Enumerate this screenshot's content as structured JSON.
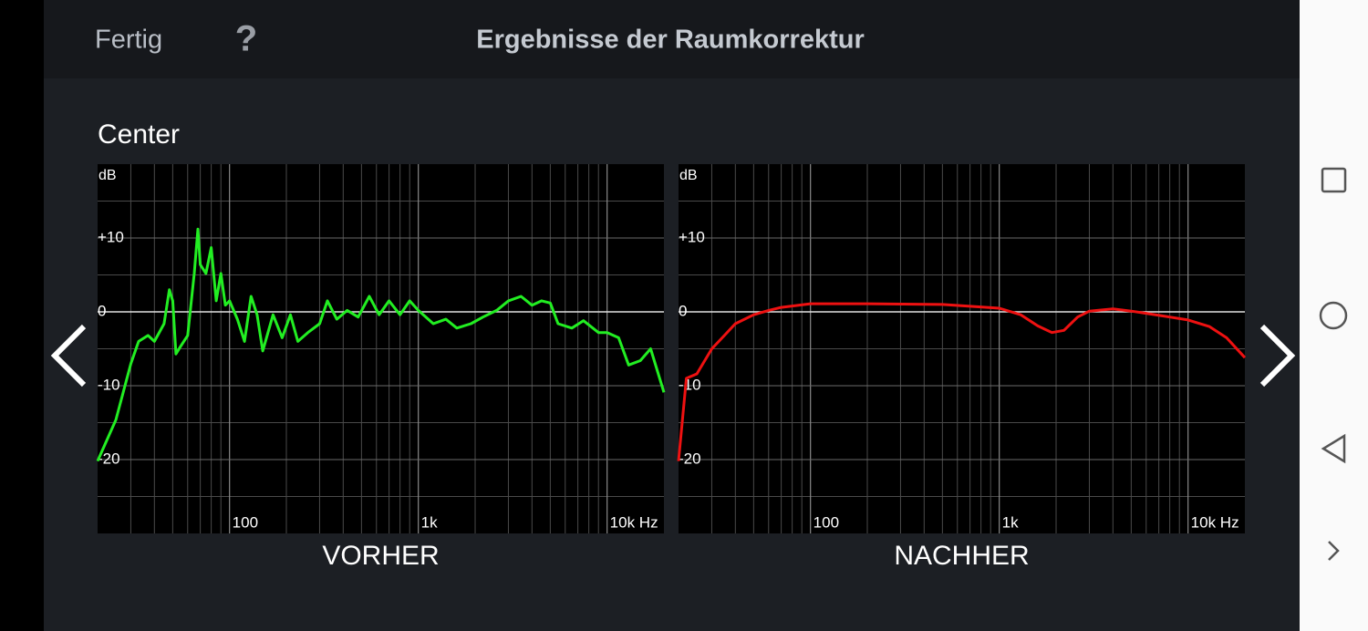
{
  "header": {
    "done_button": "Fertig",
    "help_button": "?",
    "title": "Ergebnisse der Raumkorrektur"
  },
  "channel": "Center",
  "chart_data": [
    {
      "type": "line",
      "xlabel": "VORHER",
      "ylabel": "dB",
      "x_scale": "log",
      "grid": true,
      "xlim": [
        20,
        20000
      ],
      "ylim": [
        -30,
        20
      ],
      "xticks": [
        100,
        {
          "value": 1000,
          "label": "1k"
        },
        {
          "value": 10000,
          "label": "10k Hz"
        }
      ],
      "x_minor_ticks": [
        30,
        40,
        50,
        60,
        70,
        80,
        90,
        200,
        300,
        400,
        500,
        600,
        700,
        800,
        900,
        2000,
        3000,
        4000,
        5000,
        6000,
        7000,
        8000,
        9000
      ],
      "yticks": [
        {
          "value": 10,
          "label": "+10"
        },
        0,
        -10,
        -20
      ],
      "y_minor_ticks": [
        15,
        5,
        -5,
        -15,
        -25
      ],
      "x": [
        20,
        25,
        30,
        33,
        37,
        40,
        45,
        48,
        50,
        52,
        55,
        60,
        65,
        68,
        70,
        75,
        80,
        85,
        90,
        95,
        100,
        110,
        120,
        130,
        140,
        150,
        170,
        190,
        210,
        230,
        260,
        300,
        330,
        370,
        420,
        480,
        550,
        620,
        700,
        800,
        900,
        1000,
        1200,
        1400,
        1600,
        1900,
        2200,
        2600,
        3000,
        3500,
        4000,
        4500,
        5000,
        5500,
        6500,
        7500,
        9000,
        10000,
        11500,
        13000,
        15000,
        17000,
        20000
      ],
      "series": [
        {
          "color": "#22ee22",
          "values": [
            -20.2,
            -14.6,
            -7,
            -4,
            -3.2,
            -4,
            -1.6,
            3,
            1.5,
            -5.7,
            -4.7,
            -3.2,
            5.2,
            11.2,
            6.4,
            5.2,
            8.7,
            1.5,
            5.2,
            0.9,
            1.5,
            -1,
            -4,
            2.1,
            -0.4,
            -5.3,
            -0.4,
            -3.5,
            -0.4,
            -4,
            -2.8,
            -1.6,
            1.5,
            -1,
            0.2,
            -0.7,
            2.1,
            -0.4,
            1.5,
            -0.4,
            1.5,
            0.2,
            -1.6,
            -1,
            -2.2,
            -1.6,
            -0.7,
            0.2,
            1.5,
            2.1,
            0.9,
            1.5,
            1.2,
            -1.6,
            -2.2,
            -1.2,
            -2.8,
            -2.8,
            -3.5,
            -7.2,
            -6.6,
            -5,
            -10.9
          ]
        }
      ]
    },
    {
      "type": "line",
      "xlabel": "NACHHER",
      "ylabel": "dB",
      "x_scale": "log",
      "grid": true,
      "xlim": [
        20,
        20000
      ],
      "ylim": [
        -30,
        20
      ],
      "xticks": [
        100,
        {
          "value": 1000,
          "label": "1k"
        },
        {
          "value": 10000,
          "label": "10k Hz"
        }
      ],
      "x_minor_ticks": [
        30,
        40,
        50,
        60,
        70,
        80,
        90,
        200,
        300,
        400,
        500,
        600,
        700,
        800,
        900,
        2000,
        3000,
        4000,
        5000,
        6000,
        7000,
        8000,
        9000
      ],
      "yticks": [
        {
          "value": 10,
          "label": "+10"
        },
        0,
        -10,
        -20
      ],
      "y_minor_ticks": [
        15,
        5,
        -5,
        -15,
        -25
      ],
      "x": [
        20,
        22,
        25,
        30,
        35,
        40,
        50,
        60,
        70,
        100,
        200,
        500,
        1000,
        1300,
        1600,
        1900,
        2200,
        2600,
        3000,
        4000,
        5000,
        6000,
        8000,
        10000,
        13000,
        16000,
        20000
      ],
      "series": [
        {
          "color": "#ee1111",
          "values": [
            -20.2,
            -9,
            -8.4,
            -5,
            -3.2,
            -1.6,
            -0.4,
            0.2,
            0.6,
            1.1,
            1.1,
            1,
            0.5,
            -0.4,
            -1.9,
            -2.8,
            -2.5,
            -0.7,
            0.1,
            0.4,
            0.1,
            -0.2,
            -0.7,
            -1.1,
            -2,
            -3.5,
            -6.2
          ]
        }
      ]
    }
  ]
}
